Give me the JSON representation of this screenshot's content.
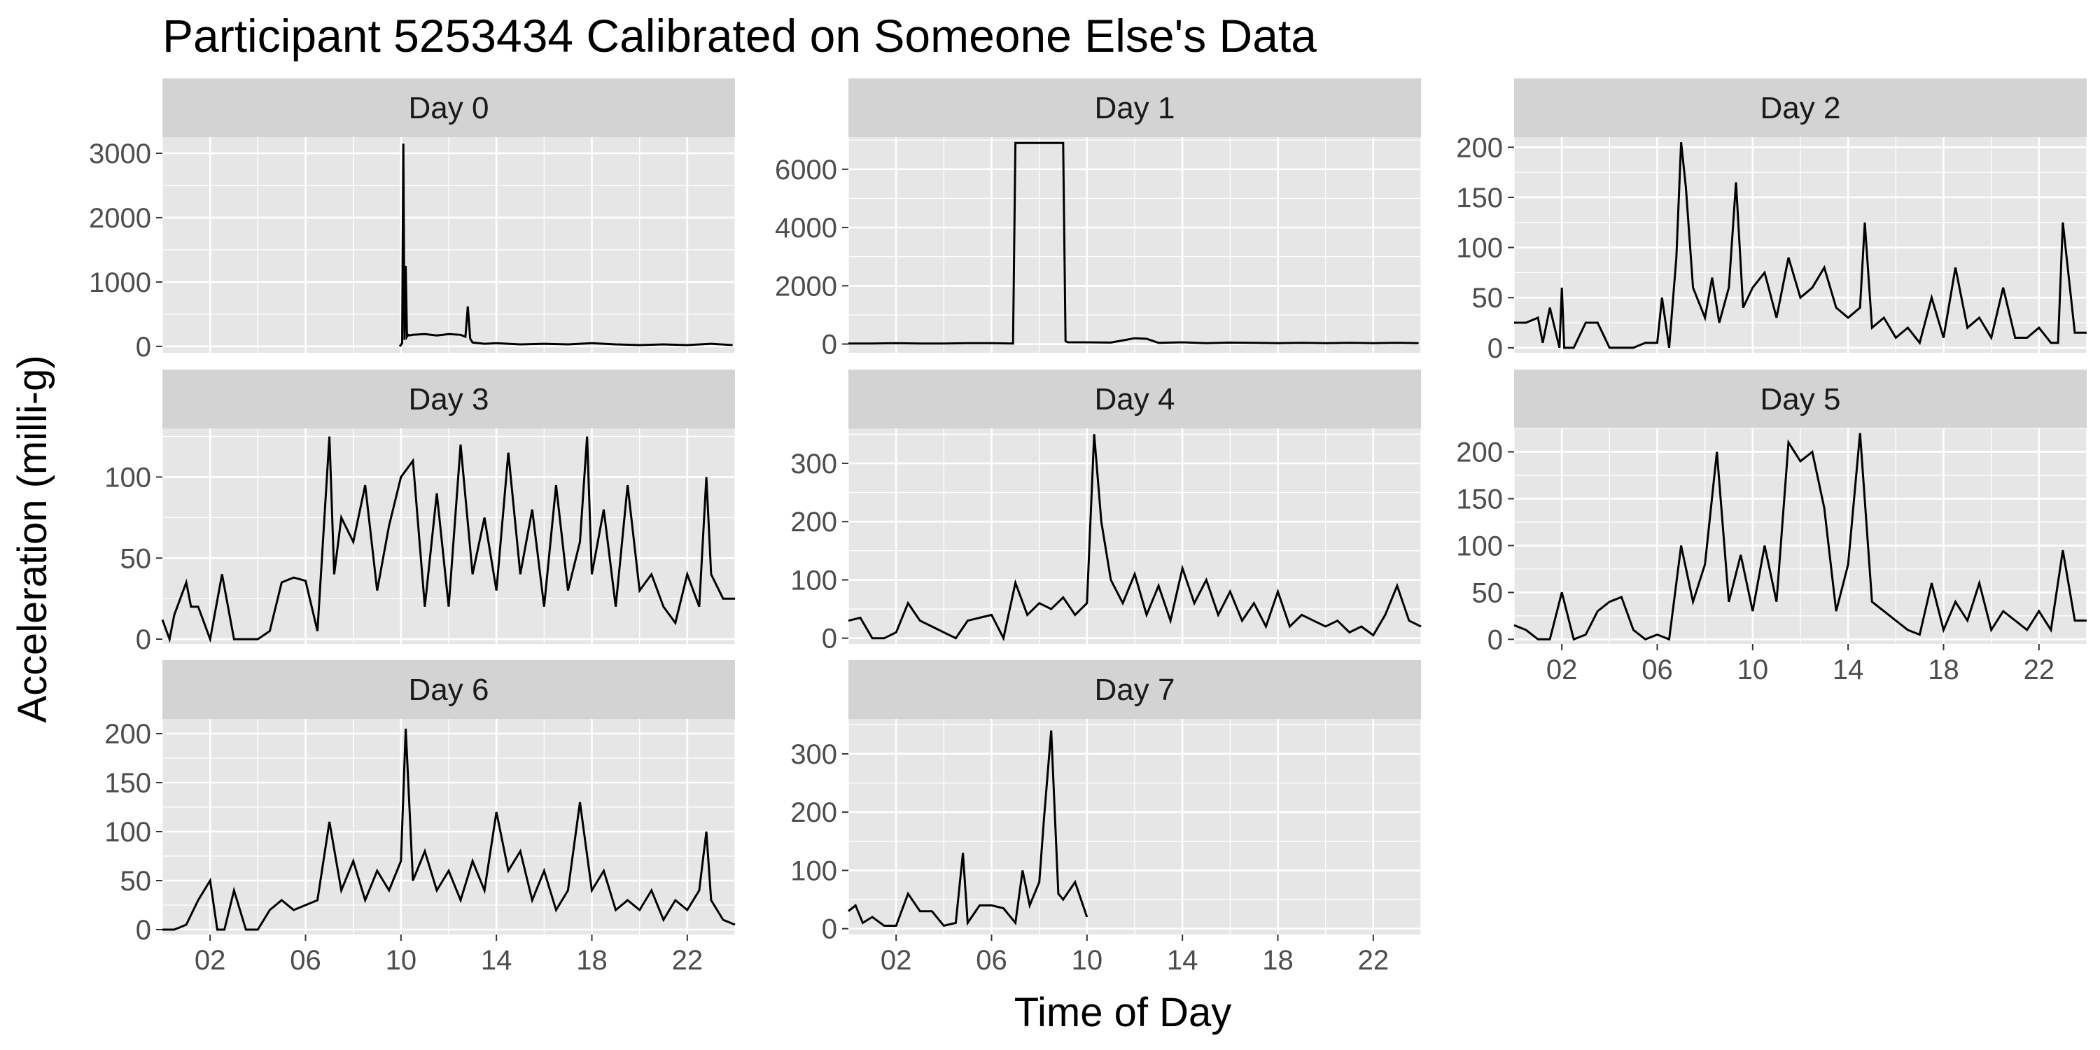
{
  "chart_data": {
    "type": "line",
    "title": "Participant 5253434 Calibrated on Someone Else's Data",
    "xlabel": "Time of Day",
    "ylabel": "Acceleration (milli-g)",
    "x_unit": "hour of day",
    "x_ticks": [
      "02",
      "06",
      "10",
      "14",
      "18",
      "22"
    ],
    "grid": true,
    "line_color": "#000000",
    "panel_bg": "#e6e6e6",
    "strip_bg": "#d3d3d3",
    "panels": [
      {
        "strip": "Day 0",
        "xlim": [
          0,
          24
        ],
        "ylim": [
          -100,
          3250
        ],
        "y_ticks": [
          0,
          1000,
          2000,
          3000
        ],
        "x": [
          9.95,
          10.05,
          10.1,
          10.15,
          10.2,
          10.25,
          10.3,
          10.35,
          10.5,
          11,
          11.5,
          12,
          12.5,
          12.7,
          12.8,
          12.9,
          13,
          13.5,
          14,
          15,
          16,
          17,
          18,
          19,
          20,
          21,
          22,
          23,
          23.9
        ],
        "y": [
          0,
          50,
          3150,
          100,
          1250,
          150,
          180,
          170,
          180,
          190,
          170,
          190,
          180,
          150,
          620,
          120,
          60,
          40,
          50,
          30,
          40,
          30,
          50,
          30,
          20,
          30,
          20,
          40,
          20
        ]
      },
      {
        "strip": "Day 1",
        "xlim": [
          0,
          24
        ],
        "ylim": [
          -300,
          7100
        ],
        "y_ticks": [
          0,
          2000,
          4000,
          6000
        ],
        "x": [
          0,
          1,
          2,
          3,
          4,
          5,
          6,
          6.9,
          7,
          7.1,
          9,
          9.1,
          9.2,
          10,
          11,
          12,
          12.5,
          13,
          14,
          15,
          16,
          17,
          18,
          19,
          20,
          21,
          22,
          23,
          23.9
        ],
        "y": [
          20,
          20,
          30,
          20,
          20,
          30,
          30,
          20,
          6900,
          6900,
          6900,
          100,
          60,
          60,
          50,
          200,
          180,
          40,
          60,
          30,
          50,
          40,
          30,
          40,
          30,
          40,
          30,
          40,
          30
        ],
        "pattern": "Day 1 flat near zero with a plateau near 6900 between about 07:00 and 09:00"
      },
      {
        "strip": "Day 2",
        "xlim": [
          0,
          24
        ],
        "ylim": [
          -5,
          210
        ],
        "y_ticks": [
          0,
          50,
          100,
          150,
          200
        ],
        "x": [
          0,
          0.5,
          1,
          1.2,
          1.5,
          1.9,
          2,
          2.1,
          2.5,
          3,
          3.5,
          4,
          4.5,
          5,
          5.5,
          6,
          6.2,
          6.5,
          6.8,
          7,
          7.2,
          7.5,
          8,
          8.3,
          8.6,
          9,
          9.3,
          9.6,
          10,
          10.5,
          11,
          11.5,
          12,
          12.5,
          13,
          13.5,
          14,
          14.5,
          14.7,
          15,
          15.5,
          16,
          16.5,
          17,
          17.5,
          18,
          18.5,
          19,
          19.5,
          20,
          20.5,
          21,
          21.5,
          22,
          22.5,
          22.8,
          23,
          23.5,
          24
        ],
        "y": [
          25,
          25,
          30,
          5,
          40,
          0,
          60,
          0,
          0,
          25,
          25,
          0,
          0,
          0,
          5,
          5,
          50,
          0,
          90,
          205,
          160,
          60,
          30,
          70,
          25,
          60,
          165,
          40,
          60,
          75,
          30,
          90,
          50,
          60,
          80,
          40,
          30,
          40,
          125,
          20,
          30,
          10,
          20,
          5,
          50,
          10,
          80,
          20,
          30,
          10,
          60,
          10,
          10,
          20,
          5,
          5,
          125,
          15,
          15
        ],
        "pattern": "Day 2 bursty activity with spikes near 07:00 and 09:30"
      },
      {
        "strip": "Day 3",
        "xlim": [
          0,
          24
        ],
        "ylim": [
          -3,
          130
        ],
        "y_ticks": [
          0,
          50,
          100
        ],
        "x": [
          0,
          0.3,
          0.5,
          1,
          1.2,
          1.5,
          2,
          2.5,
          3,
          3.5,
          4,
          4.5,
          5,
          5.5,
          6,
          6.5,
          7,
          7.2,
          7.5,
          8,
          8.5,
          9,
          9.5,
          10,
          10.5,
          11,
          11.5,
          12,
          12.5,
          13,
          13.5,
          14,
          14.5,
          15,
          15.5,
          16,
          16.5,
          17,
          17.5,
          17.8,
          18,
          18.5,
          19,
          19.5,
          20,
          20.5,
          21,
          21.5,
          22,
          22.5,
          22.8,
          23,
          23.5,
          24
        ],
        "y": [
          12,
          0,
          15,
          35,
          20,
          20,
          0,
          40,
          0,
          0,
          0,
          5,
          35,
          38,
          36,
          5,
          125,
          40,
          75,
          60,
          95,
          30,
          70,
          100,
          110,
          20,
          90,
          20,
          120,
          40,
          75,
          30,
          115,
          40,
          80,
          20,
          95,
          30,
          60,
          125,
          40,
          80,
          20,
          95,
          30,
          40,
          20,
          10,
          40,
          20,
          100,
          40,
          25,
          25
        ],
        "pattern": "Day 3 dense activity from about 06:00 to 23:00"
      },
      {
        "strip": "Day 4",
        "xlim": [
          0,
          24
        ],
        "ylim": [
          -10,
          360
        ],
        "y_ticks": [
          0,
          100,
          200,
          300
        ],
        "x": [
          0,
          0.5,
          1,
          1.5,
          2,
          2.5,
          3,
          3.5,
          4,
          4.5,
          5,
          5.5,
          6,
          6.5,
          7,
          7.5,
          8,
          8.5,
          9,
          9.5,
          10,
          10.3,
          10.6,
          11,
          11.5,
          12,
          12.5,
          13,
          13.5,
          14,
          14.5,
          15,
          15.5,
          16,
          16.5,
          17,
          17.5,
          18,
          18.5,
          19,
          19.5,
          20,
          20.5,
          21,
          21.5,
          22,
          22.5,
          23,
          23.5,
          24
        ],
        "y": [
          30,
          35,
          0,
          0,
          10,
          60,
          30,
          20,
          10,
          0,
          30,
          35,
          40,
          0,
          95,
          40,
          60,
          50,
          70,
          40,
          60,
          350,
          200,
          100,
          60,
          110,
          40,
          90,
          30,
          120,
          60,
          100,
          40,
          80,
          30,
          60,
          20,
          80,
          20,
          40,
          30,
          20,
          30,
          10,
          20,
          5,
          40,
          90,
          30,
          20
        ],
        "pattern": "Day 4 peak near 350 at about 10:20"
      },
      {
        "strip": "Day 5",
        "xlim": [
          0,
          24
        ],
        "ylim": [
          -5,
          225
        ],
        "y_ticks": [
          0,
          50,
          100,
          150,
          200
        ],
        "x": [
          0,
          0.5,
          1,
          1.5,
          2,
          2.5,
          3,
          3.5,
          4,
          4.5,
          5,
          5.5,
          6,
          6.5,
          7,
          7.5,
          8,
          8.5,
          9,
          9.5,
          10,
          10.5,
          11,
          11.5,
          12,
          12.5,
          13,
          13.5,
          14,
          14.5,
          15,
          15.5,
          16,
          16.5,
          17,
          17.5,
          18,
          18.5,
          19,
          19.5,
          20,
          20.5,
          21,
          21.5,
          22,
          22.5,
          23,
          23.5,
          24
        ],
        "y": [
          15,
          10,
          0,
          0,
          50,
          0,
          5,
          30,
          40,
          45,
          10,
          0,
          5,
          0,
          100,
          40,
          80,
          200,
          40,
          90,
          30,
          100,
          40,
          210,
          190,
          200,
          140,
          30,
          80,
          220,
          40,
          30,
          20,
          10,
          5,
          60,
          10,
          40,
          20,
          60,
          10,
          30,
          20,
          10,
          30,
          10,
          95,
          20,
          20
        ],
        "pattern": "Day 5 active periods between 07:00 and 15:00"
      },
      {
        "strip": "Day 6",
        "xlim": [
          0,
          24
        ],
        "ylim": [
          -5,
          215
        ],
        "y_ticks": [
          0,
          50,
          100,
          150,
          200
        ],
        "x": [
          0,
          0.5,
          1,
          1.5,
          2,
          2.3,
          2.6,
          3,
          3.5,
          4,
          4.5,
          5,
          5.5,
          6,
          6.5,
          7,
          7.5,
          8,
          8.5,
          9,
          9.5,
          10,
          10.2,
          10.5,
          11,
          11.5,
          12,
          12.5,
          13,
          13.5,
          14,
          14.5,
          15,
          15.5,
          16,
          16.5,
          17,
          17.5,
          18,
          18.5,
          19,
          19.5,
          20,
          20.5,
          21,
          21.5,
          22,
          22.5,
          22.8,
          23,
          23.5,
          24
        ],
        "y": [
          0,
          0,
          5,
          30,
          50,
          0,
          0,
          40,
          0,
          0,
          20,
          30,
          20,
          25,
          30,
          110,
          40,
          70,
          30,
          60,
          40,
          70,
          205,
          50,
          80,
          40,
          60,
          30,
          70,
          40,
          120,
          60,
          80,
          30,
          60,
          20,
          40,
          130,
          40,
          60,
          20,
          30,
          20,
          40,
          10,
          30,
          20,
          40,
          100,
          30,
          10,
          5
        ],
        "pattern": "Day 6 spike near 205 at about 10:10"
      },
      {
        "strip": "Day 7",
        "xlim": [
          0,
          24
        ],
        "ylim": [
          -10,
          360
        ],
        "y_ticks": [
          0,
          100,
          200,
          300
        ],
        "x": [
          0,
          0.3,
          0.6,
          1,
          1.5,
          2,
          2.5,
          3,
          3.5,
          4,
          4.5,
          4.8,
          5,
          5.5,
          6,
          6.5,
          7,
          7.3,
          7.6,
          8,
          8.2,
          8.5,
          8.8,
          9,
          9.5,
          10
        ],
        "y": [
          30,
          40,
          10,
          20,
          5,
          5,
          60,
          30,
          30,
          5,
          10,
          130,
          10,
          40,
          40,
          35,
          10,
          100,
          40,
          80,
          190,
          340,
          60,
          50,
          80,
          20
        ],
        "pattern": "Day 7 record ends near 10:00 with a spike near 340 at about 08:30"
      }
    ]
  }
}
